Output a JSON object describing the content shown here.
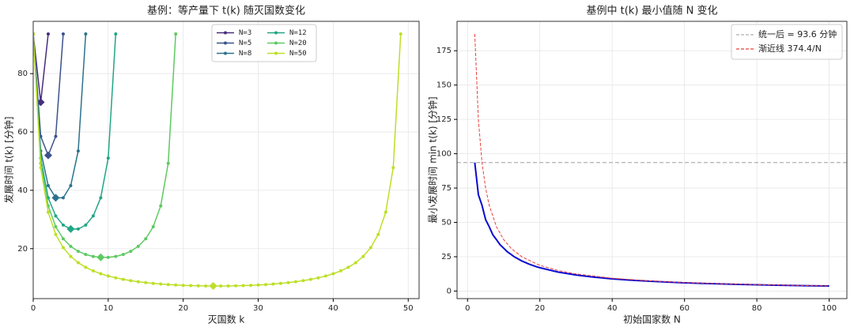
{
  "chart_data": [
    {
      "type": "line",
      "title": "基例：等产量下 t(k) 随灭国数变化",
      "xlabel": "灭国数 k",
      "ylabel": "发展时间 t(k) [分钟]",
      "xlim": [
        0,
        51.45
      ],
      "ylim": [
        2.88,
        97.92
      ],
      "xticks": [
        0,
        10,
        20,
        30,
        40,
        50
      ],
      "yticks": [
        20,
        40,
        60,
        80
      ],
      "grid": true,
      "markers": true,
      "mark_minimum": true,
      "legend": "upper center",
      "legend_columns": 2,
      "series": [
        {
          "name": "N=3",
          "color": "#472d7b",
          "x": [
            0,
            1,
            2
          ],
          "values": [
            93.6,
            70.2,
            93.6
          ]
        },
        {
          "name": "N=5",
          "color": "#3b528b",
          "x": [
            0,
            1,
            2,
            3,
            4
          ],
          "values": [
            93.6,
            58.5,
            52.0,
            58.5,
            93.6
          ]
        },
        {
          "name": "N=8",
          "color": "#2c728e",
          "x": [
            0,
            1,
            2,
            3,
            4,
            5,
            6,
            7
          ],
          "values": [
            93.6,
            53.49,
            41.6,
            37.44,
            37.44,
            41.6,
            53.49,
            93.6
          ]
        },
        {
          "name": "N=12",
          "color": "#21a685",
          "x": [
            0,
            1,
            2,
            3,
            4,
            5,
            6,
            7,
            8,
            9,
            10,
            11
          ],
          "values": [
            93.6,
            51.05,
            37.44,
            31.2,
            28.08,
            26.74,
            26.74,
            28.08,
            31.2,
            37.44,
            51.05,
            93.6
          ]
        },
        {
          "name": "N=20",
          "color": "#5ec962",
          "x": [
            0,
            1,
            2,
            3,
            4,
            5,
            6,
            7,
            8,
            9,
            10,
            11,
            12,
            13,
            14,
            15,
            16,
            17,
            18,
            19
          ],
          "values": [
            93.6,
            49.26,
            34.67,
            27.53,
            23.4,
            20.8,
            19.1,
            18.0,
            17.33,
            17.02,
            17.02,
            17.33,
            18.0,
            19.1,
            20.8,
            23.4,
            27.53,
            34.67,
            49.26,
            93.6
          ]
        },
        {
          "name": "N=50",
          "color": "#bddf26",
          "x": [
            0,
            1,
            2,
            3,
            4,
            5,
            6,
            7,
            8,
            9,
            10,
            11,
            12,
            13,
            14,
            15,
            16,
            17,
            18,
            19,
            20,
            21,
            22,
            23,
            24,
            25,
            26,
            27,
            28,
            29,
            30,
            31,
            32,
            33,
            34,
            35,
            36,
            37,
            38,
            39,
            40,
            41,
            42,
            43,
            44,
            45,
            46,
            47,
            48,
            49
          ],
          "values": [
            93.6,
            47.76,
            32.5,
            24.89,
            20.35,
            17.33,
            15.19,
            13.6,
            12.38,
            11.41,
            10.64,
            10.0,
            9.47,
            9.03,
            8.67,
            8.36,
            8.1,
            7.88,
            7.7,
            7.55,
            7.43,
            7.34,
            7.27,
            7.22,
            7.2,
            7.2,
            7.22,
            7.27,
            7.34,
            7.43,
            7.55,
            7.7,
            7.88,
            8.1,
            8.36,
            8.67,
            9.03,
            9.47,
            10.0,
            10.64,
            11.41,
            12.38,
            13.6,
            15.19,
            17.33,
            20.35,
            24.89,
            32.5,
            47.76,
            93.6
          ]
        }
      ]
    },
    {
      "type": "line",
      "title": "基例中 t(k) 最小值随 N 变化",
      "xlabel": "初始国家数 N",
      "ylabel": "最小发展时间 min t(k) [分钟]",
      "xlim": [
        -2.9,
        104.9
      ],
      "ylim": [
        -5.5,
        196.4
      ],
      "xticks": [
        0,
        20,
        40,
        60,
        80,
        100
      ],
      "yticks": [
        0,
        25,
        50,
        75,
        100,
        125,
        150,
        175
      ],
      "grid": true,
      "legend": "upper right",
      "legend_columns": 1,
      "reference_lines": [
        {
          "name": "统一后 = 93.6 分钟",
          "value": 93.6,
          "color": "#b0b0b0",
          "style": "dashed"
        }
      ],
      "series": [
        {
          "color": "#0a0ad2",
          "x": [
            2,
            3,
            4,
            5,
            6,
            7,
            8,
            9,
            10,
            11,
            12,
            13,
            14,
            15,
            16,
            17,
            18,
            19,
            20,
            25,
            30,
            35,
            40,
            45,
            50,
            55,
            60,
            65,
            70,
            75,
            80,
            85,
            90,
            95,
            100
          ],
          "values": [
            93.6,
            70.2,
            62.4,
            52.0,
            46.8,
            40.95,
            37.44,
            33.7,
            31.2,
            28.6,
            26.74,
            24.83,
            23.4,
            21.94,
            20.8,
            19.64,
            18.72,
            17.78,
            17.02,
            13.85,
            11.7,
            10.11,
            8.91,
            7.96,
            7.2,
            6.57,
            6.04,
            5.59,
            5.2,
            4.86,
            4.57,
            4.3,
            4.07,
            3.86,
            3.67
          ]
        },
        {
          "name": "渐近线 374.4/N",
          "color": "#e8413c",
          "style": "dashed",
          "x": [
            2,
            3,
            4,
            5,
            6,
            8,
            10,
            12,
            15,
            20,
            25,
            30,
            40,
            50,
            60,
            70,
            80,
            90,
            100
          ],
          "values": [
            187.2,
            124.8,
            93.6,
            74.88,
            62.4,
            46.8,
            37.44,
            31.2,
            24.96,
            18.72,
            14.98,
            12.48,
            9.36,
            7.49,
            6.24,
            5.35,
            4.68,
            4.16,
            3.74
          ]
        }
      ]
    }
  ]
}
